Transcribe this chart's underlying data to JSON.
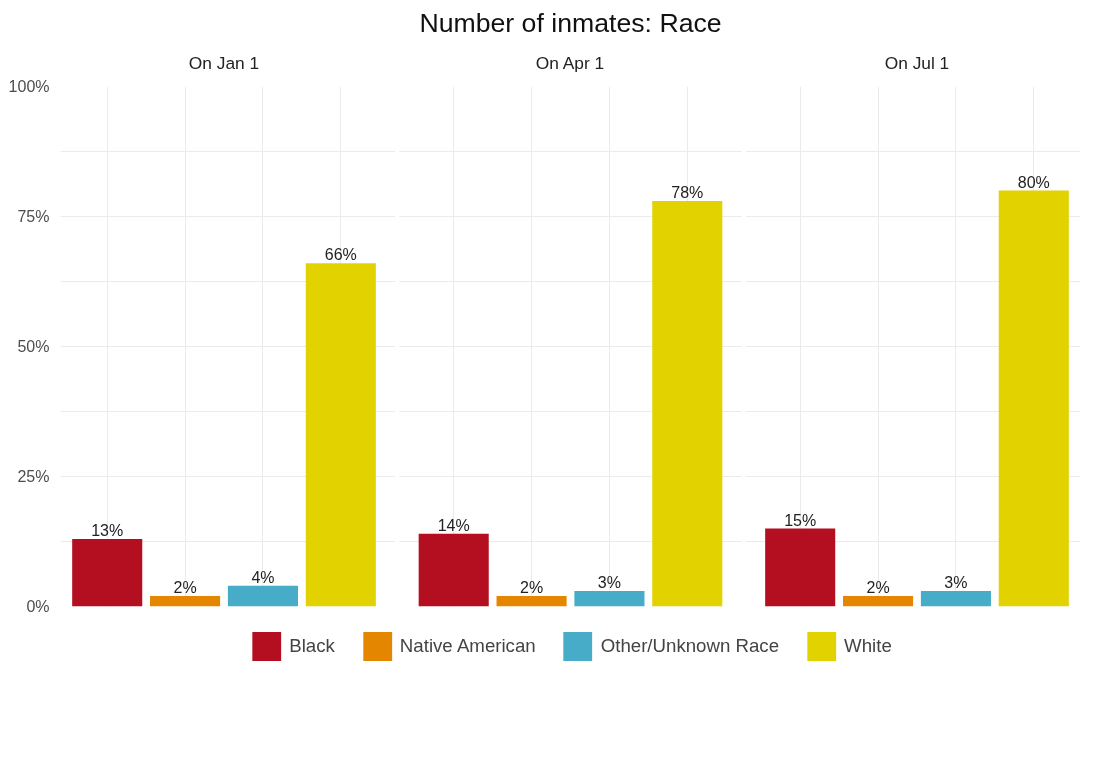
{
  "chart_data": {
    "type": "bar",
    "title": "Number of inmates: Race",
    "annotations": [
      "On Jan 1",
      "On Apr 1",
      "On Jul 1"
    ],
    "categories": [
      null,
      null,
      null,
      null,
      null,
      null,
      null,
      null,
      null,
      null,
      null,
      null
    ],
    "ylim": [
      0,
      100
    ],
    "yticks": [
      {
        "value": 0,
        "label": "0%"
      },
      {
        "value": 12.5,
        "label": null
      },
      {
        "value": 25,
        "label": "25%"
      },
      {
        "value": 37.5,
        "label": null
      },
      {
        "value": 50,
        "label": "50%"
      },
      {
        "value": 62.5,
        "label": null
      },
      {
        "value": 75,
        "label": "75%"
      },
      {
        "value": 87.5,
        "label": null
      },
      {
        "value": 100,
        "label": "100%"
      }
    ],
    "grid": true,
    "legend": "bottom",
    "tick_labels": "y",
    "series": [
      {
        "name": "Black",
        "color": "#b40f20",
        "values": [
          13,
          null,
          null,
          null,
          14,
          null,
          null,
          null,
          15,
          null,
          null,
          null
        ],
        "value_labels": [
          "13%",
          null,
          null,
          null,
          "14%",
          null,
          null,
          null,
          "15%",
          null,
          null,
          null
        ]
      },
      {
        "name": "Native American",
        "color": "#e58601",
        "values": [
          null,
          2,
          null,
          null,
          null,
          2,
          null,
          null,
          null,
          2,
          null,
          null
        ],
        "value_labels": [
          null,
          "2%",
          null,
          null,
          null,
          "2%",
          null,
          null,
          null,
          "2%",
          null,
          null
        ]
      },
      {
        "name": "Other/Unknown Race",
        "color": "#46acc8",
        "values": [
          null,
          null,
          4,
          null,
          null,
          null,
          3,
          null,
          null,
          null,
          3,
          null
        ],
        "value_labels": [
          null,
          null,
          "4%",
          null,
          null,
          null,
          "3%",
          null,
          null,
          null,
          "3%",
          null
        ]
      },
      {
        "name": "White",
        "color": "#e2d200",
        "values": [
          null,
          null,
          null,
          66,
          null,
          null,
          null,
          78,
          null,
          null,
          null,
          80
        ],
        "value_labels": [
          null,
          null,
          null,
          "66%",
          null,
          null,
          null,
          "78%",
          null,
          null,
          null,
          "80%"
        ]
      }
    ]
  }
}
